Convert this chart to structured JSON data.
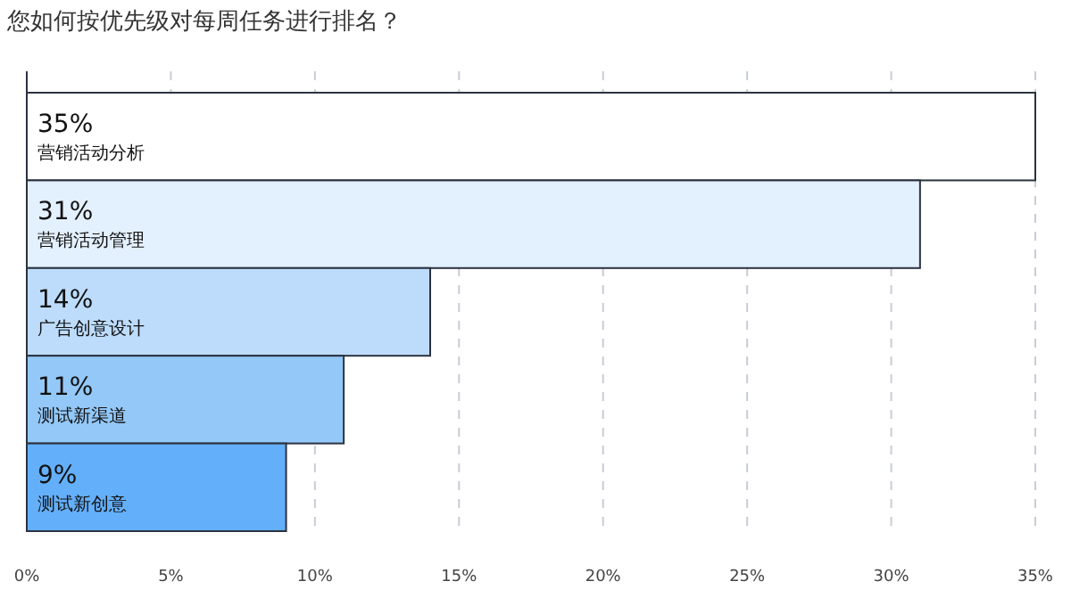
{
  "chart_data": {
    "type": "bar",
    "orientation": "horizontal",
    "title": "您如何按优先级对每周任务进行排名？",
    "categories": [
      "营销活动分析",
      "营销活动管理",
      "广告创意设计",
      "测试新渠道",
      "测试新创意"
    ],
    "values": [
      35,
      31,
      14,
      11,
      9
    ],
    "colors": [
      "#ffffff",
      "#e3f0fe",
      "#bddcfb",
      "#93c8f8",
      "#64affa"
    ],
    "value_labels": [
      "35%",
      "31%",
      "14%",
      "11%",
      "9%"
    ],
    "xlim": [
      0,
      35
    ],
    "xticks": [
      {
        "value": 0,
        "label": "0%"
      },
      {
        "value": 5,
        "label": "5%"
      },
      {
        "value": 10,
        "label": "10%"
      },
      {
        "value": 15,
        "label": "15%"
      },
      {
        "value": 20,
        "label": "20%"
      },
      {
        "value": 25,
        "label": "25%"
      },
      {
        "value": 30,
        "label": "30%"
      },
      {
        "value": 35,
        "label": "35%"
      }
    ],
    "grid": "x"
  }
}
